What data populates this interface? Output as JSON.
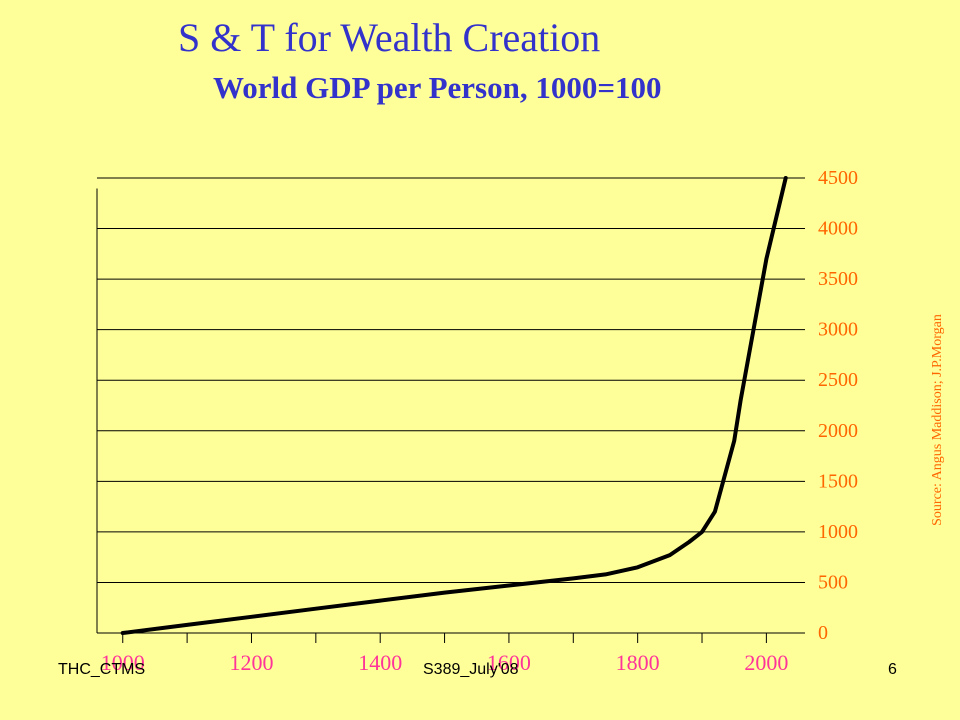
{
  "slide": {
    "title": "S & T for Wealth Creation",
    "source": "Source: Angus Maddison; J.P.Morgan",
    "footer_left": "THC_CTMS",
    "footer_center": "S389_July'08",
    "page_number": "6"
  },
  "chart_data": {
    "type": "line",
    "title": "World GDP per Person, 1000=100",
    "x_tick_labels": [
      "1000",
      "1200",
      "1400",
      "1600",
      "1800",
      "2000"
    ],
    "y_tick_labels": [
      "0",
      "500",
      "1000",
      "1500",
      "2000",
      "2500",
      "3000",
      "3500",
      "4000",
      "4500"
    ],
    "ylim": [
      0,
      4500
    ],
    "xlim": [
      960,
      2060
    ],
    "grid": "horizontal",
    "series": [
      {
        "color": "#000000",
        "x": [
          1000,
          1100,
          1200,
          1300,
          1400,
          1500,
          1600,
          1700,
          1750,
          1800,
          1850,
          1880,
          1900,
          1920,
          1950,
          1960,
          1980,
          2000,
          2030
        ],
        "y": [
          0,
          80,
          160,
          240,
          320,
          400,
          470,
          540,
          580,
          650,
          770,
          900,
          1000,
          1200,
          1900,
          2300,
          3000,
          3700,
          4500
        ]
      }
    ],
    "colors": {
      "x_tick": "#FF3399",
      "y_tick": "#FF6600",
      "grid": "#000000",
      "line": "#000000"
    }
  }
}
